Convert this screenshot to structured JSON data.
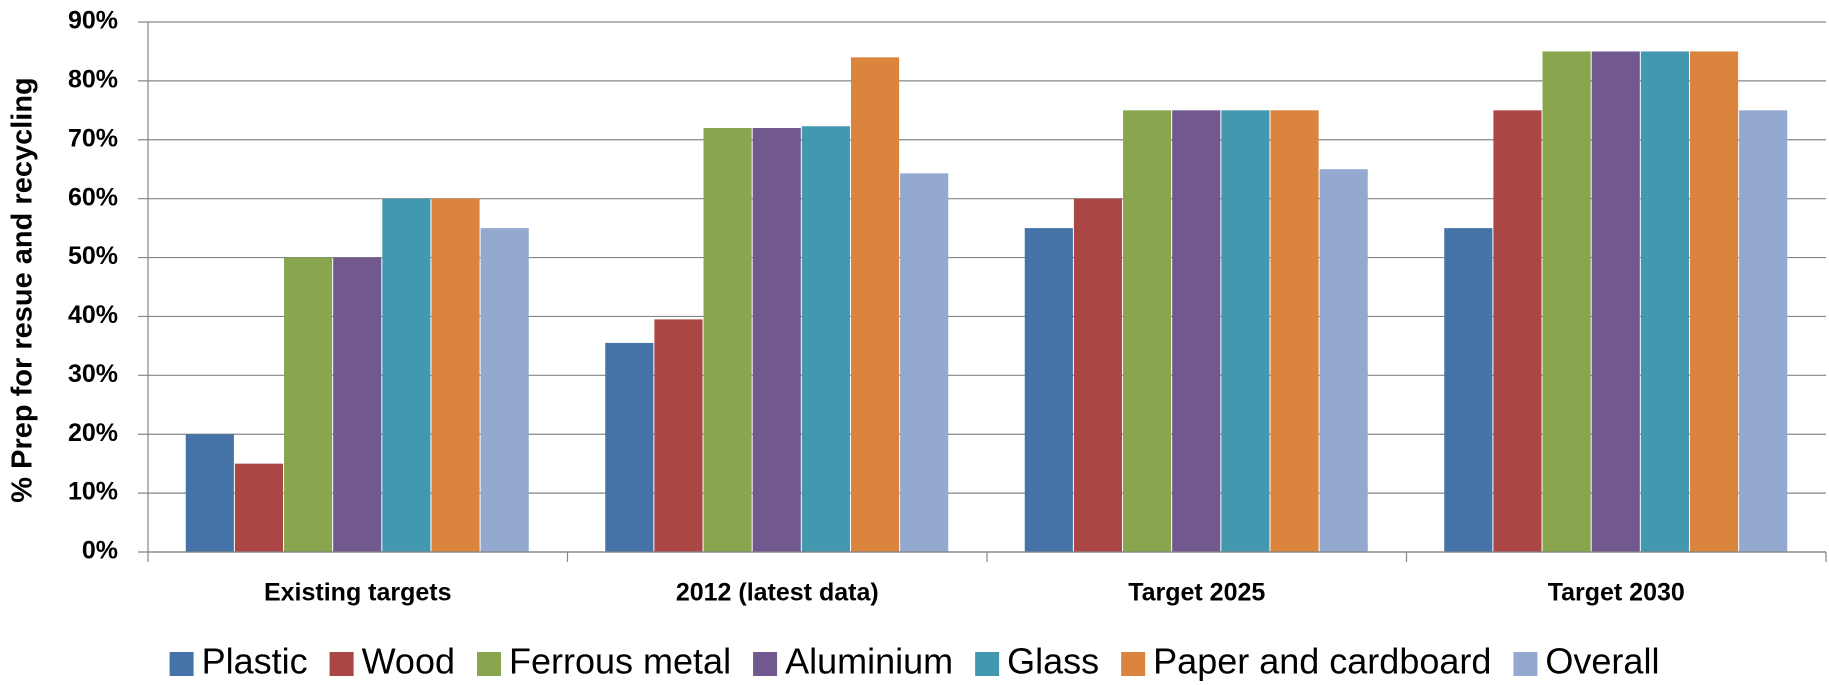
{
  "chart_data": {
    "type": "bar",
    "y_label": "% Prep for resue and recycling",
    "categories": [
      "Existing targets",
      "2012 (latest data)",
      "Target 2025",
      "Target 2030"
    ],
    "series": [
      {
        "name": "Plastic",
        "color": "#4572a7",
        "values": [
          20,
          35.5,
          55,
          55
        ]
      },
      {
        "name": "Wood",
        "color": "#aa4643",
        "values": [
          15,
          39.5,
          60,
          75
        ]
      },
      {
        "name": "Ferrous metal",
        "color": "#89a54e",
        "values": [
          50,
          72,
          75,
          85
        ]
      },
      {
        "name": "Aluminium",
        "color": "#71588f",
        "values": [
          50,
          72,
          75,
          85
        ]
      },
      {
        "name": "Glass",
        "color": "#4198af",
        "values": [
          60,
          72.3,
          75,
          85
        ]
      },
      {
        "name": "Paper and cardboard",
        "color": "#db843d",
        "values": [
          60,
          84,
          75,
          85
        ]
      },
      {
        "name": "Overall",
        "color": "#93a9cf",
        "values": [
          55,
          64.3,
          65,
          75
        ]
      }
    ],
    "ylim": [
      0,
      90
    ],
    "yticks": [
      {
        "value": 0,
        "label": "0%"
      },
      {
        "value": 10,
        "label": "10%"
      },
      {
        "value": 20,
        "label": "20%"
      },
      {
        "value": 30,
        "label": "30%"
      },
      {
        "value": 40,
        "label": "40%"
      },
      {
        "value": 50,
        "label": "50%"
      },
      {
        "value": 60,
        "label": "60%"
      },
      {
        "value": 70,
        "label": "70%"
      },
      {
        "value": 80,
        "label": "80%"
      },
      {
        "value": 90,
        "label": "90%"
      }
    ],
    "grid": true,
    "legend": "bottom"
  }
}
